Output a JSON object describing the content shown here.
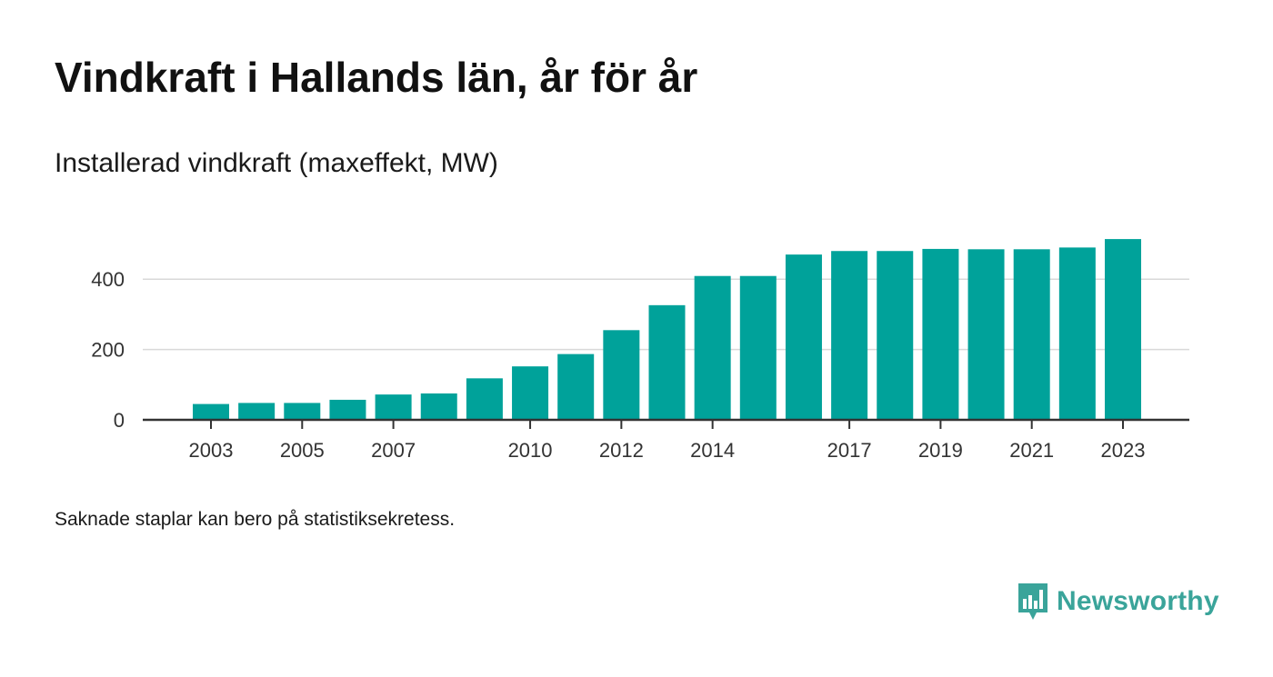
{
  "header": {
    "title": "Vindkraft i Hallands län, år för år",
    "subtitle": "Installerad vindkraft (maxeffekt, MW)"
  },
  "footnote": "Saknade staplar kan bero på statistiksekretess.",
  "brand": {
    "name": "Newsworthy",
    "icon": "newsworthy-logo-icon",
    "color": "#3aa49a"
  },
  "chart_data": {
    "type": "bar",
    "categories": [
      "2003",
      "2004",
      "2005",
      "2006",
      "2007",
      "2008",
      "2009",
      "2010",
      "2011",
      "2012",
      "2013",
      "2014",
      "2015",
      "2016",
      "2017",
      "2018",
      "2019",
      "2020",
      "2021",
      "2022",
      "2023"
    ],
    "values": [
      45,
      48,
      48,
      57,
      72,
      75,
      118,
      152,
      187,
      255,
      326,
      409,
      409,
      470,
      480,
      480,
      486,
      485,
      485,
      490,
      514
    ],
    "x_tick_labels": [
      "2003",
      "2005",
      "2007",
      "2010",
      "2012",
      "2014",
      "2017",
      "2019",
      "2021",
      "2023"
    ],
    "y_ticks": [
      0,
      200,
      400
    ],
    "ylim": [
      0,
      520
    ],
    "bar_color": "#00a29a",
    "grid": true,
    "title": "Vindkraft i Hallands län, år för år",
    "ylabel": "",
    "xlabel": ""
  }
}
